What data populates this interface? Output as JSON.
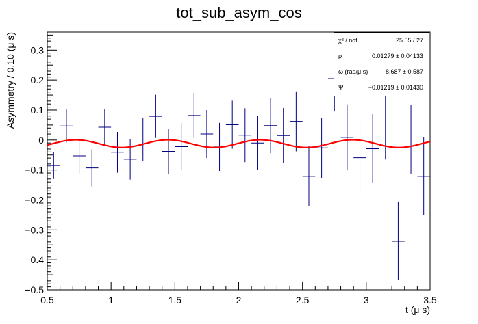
{
  "chart_data": {
    "type": "scatter",
    "title": "tot_sub_asym_cos",
    "xlabel": "t (μ s)",
    "ylabel": "Asymmetry / 0.10 (μ s)",
    "xlim": [
      0.5,
      3.5
    ],
    "ylim": [
      -0.5,
      0.36
    ],
    "xticks": [
      "0.5",
      "1",
      "1.5",
      "2",
      "2.5",
      "3",
      "3.5"
    ],
    "yticks": [
      "0.3",
      "0.2",
      "0.1",
      "0",
      "−0.1",
      "−0.2",
      "−0.3",
      "−0.4",
      "−0.5"
    ],
    "grid": false,
    "bin_width": 0.1,
    "series": [
      {
        "type": "errorbar",
        "color": "#000080",
        "x": [
          0.55,
          0.65,
          0.75,
          0.85,
          0.95,
          1.05,
          1.15,
          1.25,
          1.35,
          1.45,
          1.55,
          1.65,
          1.75,
          1.85,
          1.95,
          2.05,
          2.15,
          2.25,
          2.35,
          2.45,
          2.55,
          2.65,
          2.75,
          2.85,
          2.95,
          3.05,
          3.15,
          3.25,
          3.35,
          3.45
        ],
        "y": [
          -0.085,
          0.047,
          -0.053,
          -0.093,
          0.043,
          -0.041,
          -0.064,
          0.003,
          0.079,
          -0.038,
          -0.022,
          0.082,
          0.02,
          -0.023,
          0.051,
          0.016,
          -0.01,
          0.048,
          0.015,
          0.062,
          -0.121,
          -0.026,
          0.205,
          0.009,
          -0.059,
          -0.029,
          0.06,
          -0.338,
          0.003,
          -0.121
        ],
        "yerr": [
          0.045,
          0.055,
          0.058,
          0.062,
          0.06,
          0.068,
          0.068,
          0.072,
          0.072,
          0.075,
          0.078,
          0.075,
          0.08,
          0.08,
          0.08,
          0.09,
          0.09,
          0.092,
          0.092,
          0.1,
          0.1,
          0.1,
          0.11,
          0.11,
          0.115,
          0.115,
          0.125,
          0.13,
          0.115,
          0.13
        ]
      },
      {
        "type": "line",
        "color": "#ff0000",
        "fit": {
          "rho": 0.01279,
          "omega": 8.687,
          "psi": -0.01219
        }
      }
    ],
    "stats_box": {
      "rows": [
        {
          "label": "χ² / ndf",
          "value": "25.55 / 27"
        },
        {
          "label": "ρ",
          "value": "0.01279 ± 0.04133"
        },
        {
          "label": "ω (rad/μ s)",
          "value": "8.687 ± 0.587"
        },
        {
          "label": "Ψ",
          "value": "−0.01219 ± 0.01430"
        }
      ]
    }
  }
}
